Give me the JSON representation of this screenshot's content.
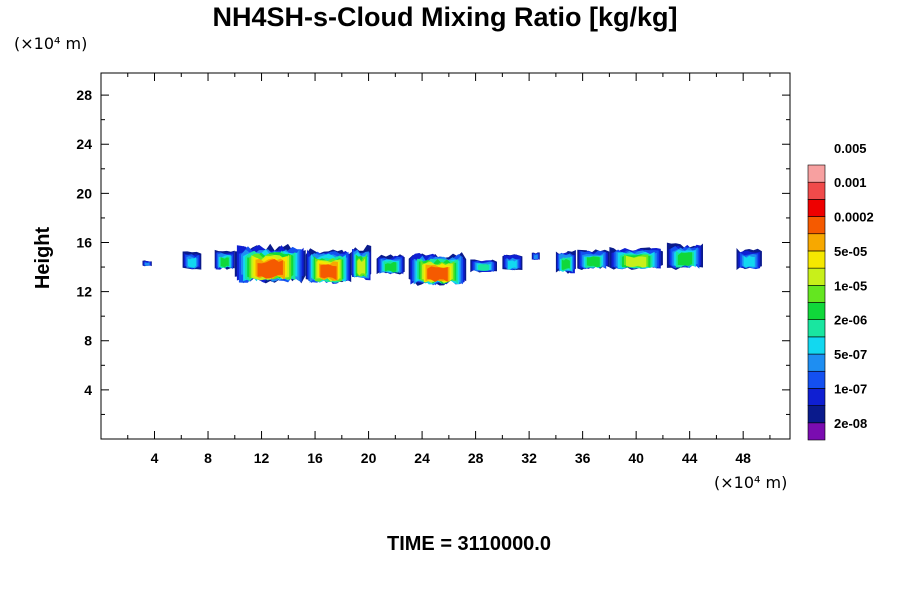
{
  "chart_data": {
    "type": "heatmap",
    "title": "NH4SH-s-Cloud Mixing Ratio [kg/kg]",
    "ylabel": "Height",
    "x_unit": "(×10⁴ m)",
    "y_unit": "(×10⁴ m)",
    "time_label": "TIME = 3110000.0",
    "xlim": [
      0,
      51.5
    ],
    "ylim": [
      0,
      29.8
    ],
    "x_ticks": [
      4,
      8,
      12,
      16,
      20,
      24,
      28,
      32,
      36,
      40,
      44,
      48
    ],
    "y_ticks": [
      4,
      8,
      12,
      16,
      20,
      24,
      28
    ],
    "grid": false,
    "legend_position": "right",
    "colorbar": {
      "colors": [
        "#7a0cb0",
        "#0a1a8c",
        "#0f1fd2",
        "#1450f0",
        "#1e8ef2",
        "#12d8f0",
        "#19e6a0",
        "#10d83a",
        "#64e620",
        "#c8f01a",
        "#f5e800",
        "#f7a800",
        "#f55a00",
        "#ee0000",
        "#f04a4a",
        "#f7a0a0"
      ],
      "labels": [
        "2e-08",
        "1e-07",
        "5e-07",
        "2e-06",
        "1e-05",
        "5e-05",
        "0.0002",
        "0.001",
        "0.005"
      ]
    },
    "clouds": [
      {
        "x0": 3.1,
        "x1": 3.8,
        "base": 14.3,
        "top": 14.8,
        "max_level": 4
      },
      {
        "x0": 6.1,
        "x1": 7.5,
        "base": 14.0,
        "top": 15.6,
        "max_level": 5
      },
      {
        "x0": 8.5,
        "x1": 10.0,
        "base": 14.0,
        "top": 15.7,
        "max_level": 7
      },
      {
        "x0": 10.0,
        "x1": 15.3,
        "base": 12.9,
        "top": 16.2,
        "max_level": 12
      },
      {
        "x0": 15.3,
        "x1": 18.7,
        "base": 12.8,
        "top": 15.8,
        "max_level": 12
      },
      {
        "x0": 18.7,
        "x1": 20.2,
        "base": 13.1,
        "top": 16.1,
        "max_level": 9
      },
      {
        "x0": 20.6,
        "x1": 22.7,
        "base": 13.6,
        "top": 15.3,
        "max_level": 7
      },
      {
        "x0": 23.0,
        "x1": 27.3,
        "base": 12.7,
        "top": 15.5,
        "max_level": 12
      },
      {
        "x0": 27.6,
        "x1": 29.6,
        "base": 13.8,
        "top": 14.9,
        "max_level": 6
      },
      {
        "x0": 30.0,
        "x1": 31.5,
        "base": 13.9,
        "top": 15.4,
        "max_level": 5
      },
      {
        "x0": 32.2,
        "x1": 32.8,
        "base": 14.8,
        "top": 15.5,
        "max_level": 4
      },
      {
        "x0": 34.0,
        "x1": 35.5,
        "base": 13.7,
        "top": 15.7,
        "max_level": 7
      },
      {
        "x0": 35.6,
        "x1": 38.0,
        "base": 14.0,
        "top": 15.8,
        "max_level": 7
      },
      {
        "x0": 38.0,
        "x1": 42.0,
        "base": 14.0,
        "top": 15.9,
        "max_level": 9
      },
      {
        "x0": 42.3,
        "x1": 45.0,
        "base": 14.0,
        "top": 16.3,
        "max_level": 7
      },
      {
        "x0": 47.5,
        "x1": 49.4,
        "base": 14.0,
        "top": 15.8,
        "max_level": 5
      }
    ]
  }
}
